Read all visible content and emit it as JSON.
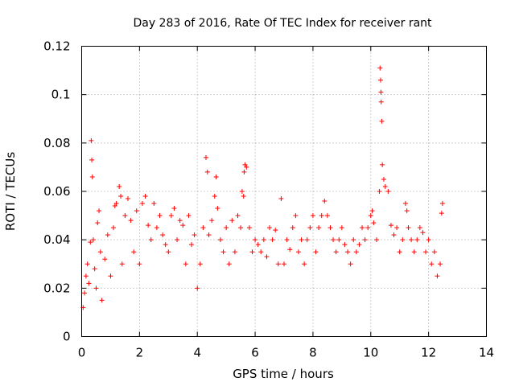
{
  "chart_data": {
    "type": "scatter",
    "title": "Day 283 of 2016, Rate Of TEC Index for receiver rant",
    "xlabel": "GPS time / hours",
    "ylabel": "ROTI / TECUs",
    "xlim": [
      0,
      14
    ],
    "ylim": [
      0,
      0.12
    ],
    "xticks": [
      0,
      2,
      4,
      6,
      8,
      10,
      12,
      14
    ],
    "xtick_labels": [
      "0",
      "2",
      "4",
      "6",
      "8",
      "10",
      "12",
      "14"
    ],
    "yticks": [
      0,
      0.02,
      0.04,
      0.06,
      0.08,
      0.1,
      0.12
    ],
    "ytick_labels": [
      "0",
      "0.02",
      "0.04",
      "0.06",
      "0.08",
      "0.1",
      "0.12"
    ],
    "grid": true,
    "marker": "plus",
    "color": "#ff0000",
    "series": [
      {
        "name": "ROTI",
        "points": [
          [
            0.05,
            0.012
          ],
          [
            0.1,
            0.018
          ],
          [
            0.15,
            0.025
          ],
          [
            0.2,
            0.03
          ],
          [
            0.25,
            0.022
          ],
          [
            0.3,
            0.039
          ],
          [
            0.33,
            0.081
          ],
          [
            0.35,
            0.073
          ],
          [
            0.37,
            0.066
          ],
          [
            0.4,
            0.04
          ],
          [
            0.45,
            0.028
          ],
          [
            0.5,
            0.02
          ],
          [
            0.55,
            0.047
          ],
          [
            0.6,
            0.052
          ],
          [
            0.65,
            0.035
          ],
          [
            0.7,
            0.015
          ],
          [
            0.8,
            0.032
          ],
          [
            0.9,
            0.042
          ],
          [
            1.0,
            0.025
          ],
          [
            1.1,
            0.045
          ],
          [
            1.15,
            0.054
          ],
          [
            1.2,
            0.055
          ],
          [
            1.3,
            0.062
          ],
          [
            1.35,
            0.058
          ],
          [
            1.4,
            0.03
          ],
          [
            1.5,
            0.05
          ],
          [
            1.6,
            0.057
          ],
          [
            1.7,
            0.048
          ],
          [
            1.8,
            0.035
          ],
          [
            1.9,
            0.052
          ],
          [
            2.0,
            0.03
          ],
          [
            2.1,
            0.055
          ],
          [
            2.2,
            0.058
          ],
          [
            2.3,
            0.046
          ],
          [
            2.4,
            0.04
          ],
          [
            2.5,
            0.055
          ],
          [
            2.6,
            0.045
          ],
          [
            2.7,
            0.05
          ],
          [
            2.8,
            0.042
          ],
          [
            2.9,
            0.038
          ],
          [
            3.0,
            0.035
          ],
          [
            3.1,
            0.05
          ],
          [
            3.2,
            0.053
          ],
          [
            3.3,
            0.04
          ],
          [
            3.4,
            0.048
          ],
          [
            3.5,
            0.046
          ],
          [
            3.6,
            0.03
          ],
          [
            3.7,
            0.05
          ],
          [
            3.8,
            0.038
          ],
          [
            3.9,
            0.042
          ],
          [
            4.0,
            0.02
          ],
          [
            4.1,
            0.03
          ],
          [
            4.2,
            0.045
          ],
          [
            4.3,
            0.074
          ],
          [
            4.35,
            0.068
          ],
          [
            4.4,
            0.042
          ],
          [
            4.5,
            0.048
          ],
          [
            4.6,
            0.058
          ],
          [
            4.65,
            0.066
          ],
          [
            4.7,
            0.053
          ],
          [
            4.8,
            0.04
          ],
          [
            4.9,
            0.035
          ],
          [
            5.0,
            0.045
          ],
          [
            5.1,
            0.03
          ],
          [
            5.2,
            0.048
          ],
          [
            5.3,
            0.035
          ],
          [
            5.4,
            0.05
          ],
          [
            5.5,
            0.045
          ],
          [
            5.55,
            0.06
          ],
          [
            5.6,
            0.058
          ],
          [
            5.62,
            0.068
          ],
          [
            5.65,
            0.071
          ],
          [
            5.7,
            0.07
          ],
          [
            5.8,
            0.045
          ],
          [
            5.9,
            0.035
          ],
          [
            6.0,
            0.04
          ],
          [
            6.1,
            0.038
          ],
          [
            6.2,
            0.035
          ],
          [
            6.3,
            0.04
          ],
          [
            6.4,
            0.033
          ],
          [
            6.5,
            0.045
          ],
          [
            6.6,
            0.04
          ],
          [
            6.7,
            0.044
          ],
          [
            6.8,
            0.03
          ],
          [
            6.9,
            0.057
          ],
          [
            7.0,
            0.03
          ],
          [
            7.1,
            0.04
          ],
          [
            7.2,
            0.036
          ],
          [
            7.3,
            0.045
          ],
          [
            7.4,
            0.05
          ],
          [
            7.5,
            0.035
          ],
          [
            7.6,
            0.04
          ],
          [
            7.7,
            0.03
          ],
          [
            7.8,
            0.04
          ],
          [
            7.9,
            0.045
          ],
          [
            8.0,
            0.05
          ],
          [
            8.1,
            0.035
          ],
          [
            8.2,
            0.045
          ],
          [
            8.3,
            0.05
          ],
          [
            8.4,
            0.056
          ],
          [
            8.5,
            0.05
          ],
          [
            8.6,
            0.045
          ],
          [
            8.7,
            0.04
          ],
          [
            8.8,
            0.035
          ],
          [
            8.9,
            0.04
          ],
          [
            9.0,
            0.045
          ],
          [
            9.1,
            0.038
          ],
          [
            9.2,
            0.035
          ],
          [
            9.3,
            0.03
          ],
          [
            9.4,
            0.04
          ],
          [
            9.5,
            0.035
          ],
          [
            9.6,
            0.038
          ],
          [
            9.7,
            0.045
          ],
          [
            9.8,
            0.04
          ],
          [
            9.9,
            0.045
          ],
          [
            10.0,
            0.05
          ],
          [
            10.05,
            0.052
          ],
          [
            10.1,
            0.047
          ],
          [
            10.2,
            0.04
          ],
          [
            10.3,
            0.06
          ],
          [
            10.32,
            0.111
          ],
          [
            10.34,
            0.106
          ],
          [
            10.35,
            0.101
          ],
          [
            10.36,
            0.097
          ],
          [
            10.38,
            0.089
          ],
          [
            10.4,
            0.071
          ],
          [
            10.45,
            0.065
          ],
          [
            10.5,
            0.062
          ],
          [
            10.6,
            0.06
          ],
          [
            10.7,
            0.046
          ],
          [
            10.8,
            0.042
          ],
          [
            10.9,
            0.045
          ],
          [
            11.0,
            0.035
          ],
          [
            11.1,
            0.04
          ],
          [
            11.2,
            0.055
          ],
          [
            11.25,
            0.052
          ],
          [
            11.3,
            0.045
          ],
          [
            11.4,
            0.04
          ],
          [
            11.5,
            0.035
          ],
          [
            11.6,
            0.04
          ],
          [
            11.7,
            0.045
          ],
          [
            11.8,
            0.043
          ],
          [
            11.9,
            0.035
          ],
          [
            12.0,
            0.04
          ],
          [
            12.1,
            0.03
          ],
          [
            12.2,
            0.035
          ],
          [
            12.3,
            0.025
          ],
          [
            12.4,
            0.03
          ],
          [
            12.45,
            0.051
          ],
          [
            12.48,
            0.055
          ]
        ]
      }
    ]
  }
}
